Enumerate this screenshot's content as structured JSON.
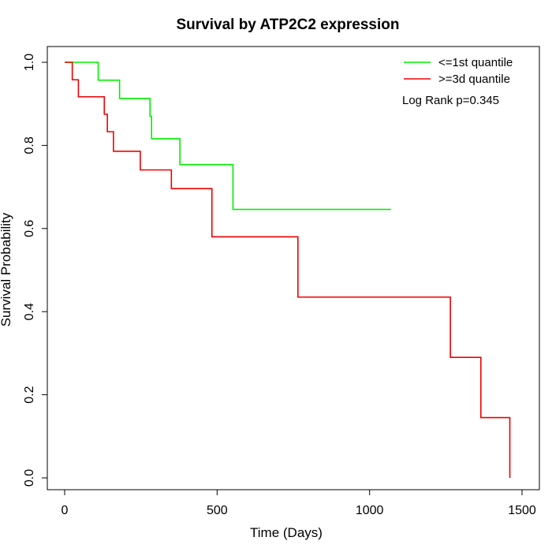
{
  "chart_data": {
    "type": "line",
    "title": "Survival by ATP2C2 expression",
    "xlabel": "Time (Days)",
    "ylabel": "Survival Probability",
    "xlim": [
      0,
      1500
    ],
    "ylim": [
      0,
      1
    ],
    "x_ticks": [
      0,
      500,
      1000,
      1500
    ],
    "y_ticks": [
      0.0,
      0.2,
      0.4,
      0.6,
      0.8,
      1.0
    ],
    "x_tick_labels": [
      "0",
      "500",
      "1000",
      "1500"
    ],
    "y_tick_labels": [
      "0.0",
      "0.2",
      "0.4",
      "0.6",
      "0.8",
      "1.0"
    ],
    "grid": false,
    "legend_position": "top-right",
    "annotation": "Log Rank p=0.345",
    "series": [
      {
        "name": "<=1st quantile",
        "color": "#00ee00",
        "step": true,
        "x": [
          0,
          110,
          180,
          280,
          285,
          378,
          552,
          1070
        ],
        "y": [
          1.0,
          0.957,
          0.913,
          0.87,
          0.816,
          0.754,
          0.646,
          0.646
        ]
      },
      {
        "name": ">=3d quantile",
        "color": "#ee0000",
        "step": true,
        "x": [
          0,
          25,
          45,
          130,
          140,
          160,
          248,
          350,
          483,
          765,
          1265,
          1365,
          1460
        ],
        "y": [
          1.0,
          0.958,
          0.917,
          0.875,
          0.833,
          0.786,
          0.741,
          0.696,
          0.58,
          0.435,
          0.29,
          0.145,
          0.0
        ]
      }
    ]
  }
}
